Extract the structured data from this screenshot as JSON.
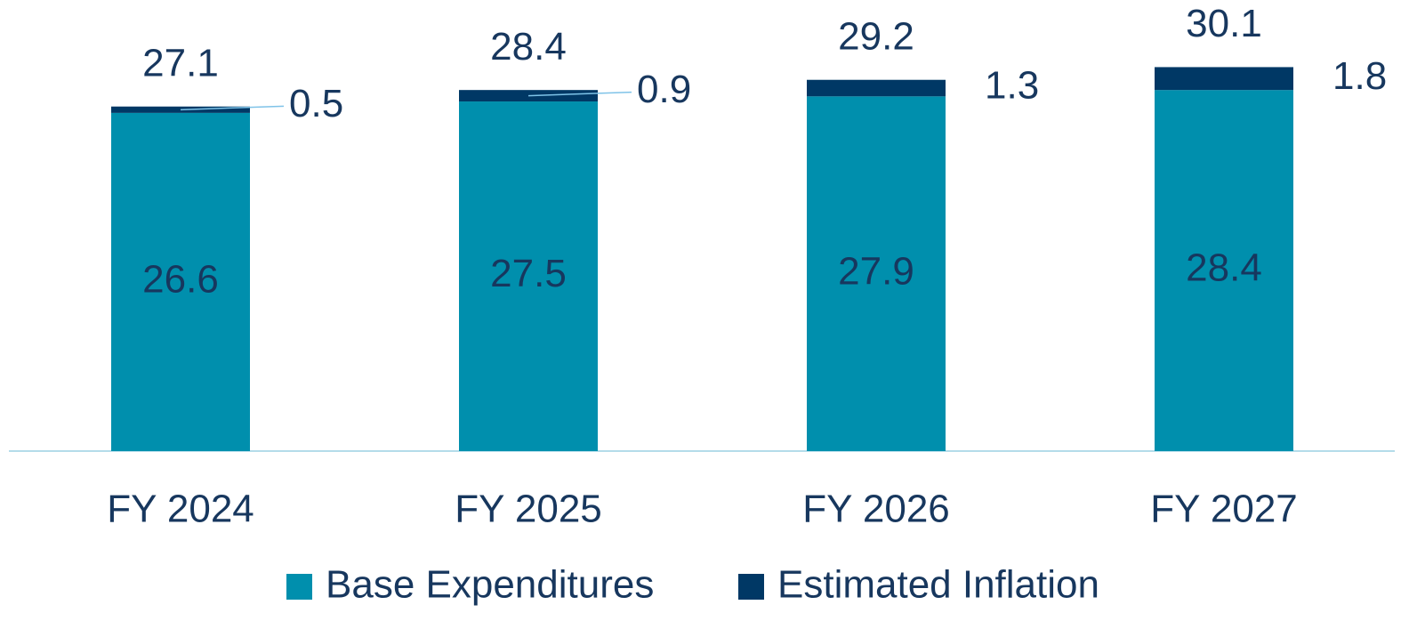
{
  "chart_data": {
    "type": "stacked-bar",
    "categories": [
      "FY 2024",
      "FY 2025",
      "FY 2026",
      "FY 2027"
    ],
    "series": [
      {
        "name": "Base Expenditures",
        "color": "#008fad",
        "values": [
          26.6,
          27.5,
          27.9,
          28.4
        ]
      },
      {
        "name": "Estimated Inflation",
        "color": "#003865",
        "values": [
          0.5,
          0.9,
          1.3,
          1.8
        ]
      }
    ],
    "totals": [
      27.1,
      28.4,
      29.2,
      30.1
    ],
    "legend": "bottom"
  }
}
